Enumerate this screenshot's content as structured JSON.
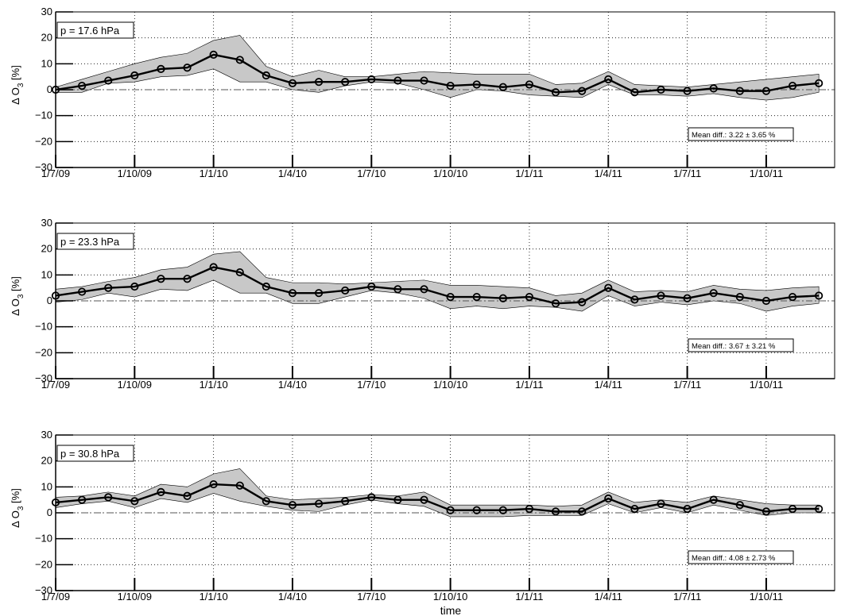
{
  "xlabel": "time",
  "chart_data": [
    {
      "type": "line",
      "label": "p = 17.6 hPa",
      "ylabel": "Δ O",
      "ylabel_sub": "3",
      "ylabel_unit": "[%]",
      "ylim": [
        -30,
        30
      ],
      "yticks": [
        30,
        20,
        10,
        0,
        -10,
        -20,
        -30
      ],
      "yticklabels": [
        "30",
        "20",
        "10",
        "0",
        "−10",
        "−20",
        "−30"
      ],
      "xlim": [
        0,
        29.6
      ],
      "xticks": [
        0,
        3,
        6,
        9,
        12,
        15,
        18,
        21,
        24,
        27
      ],
      "xticklabels": [
        "1/7/09",
        "1/10/09",
        "1/1/10",
        "1/4/10",
        "1/7/10",
        "1/10/10",
        "1/1/11",
        "1/4/11",
        "1/7/11",
        "1/10/11"
      ],
      "x": [
        0,
        1,
        2,
        3,
        4,
        5,
        6,
        7,
        8,
        9,
        10,
        11,
        12,
        13,
        14,
        15,
        16,
        17,
        18,
        19,
        20,
        21,
        22,
        23,
        24,
        25,
        26,
        27,
        28,
        29
      ],
      "values": [
        0,
        1.5,
        3.5,
        5.5,
        8,
        8.5,
        13.5,
        11.5,
        5.5,
        2.5,
        3,
        3,
        4,
        3.5,
        3.5,
        1.5,
        2,
        1,
        2,
        -1,
        -0.5,
        4,
        -1,
        0,
        -0.5,
        0.5,
        -0.5,
        -0.5,
        1.5,
        2.5
      ],
      "upper": [
        1,
        4,
        7,
        10,
        12.5,
        14,
        19,
        21,
        9,
        5,
        7.5,
        5,
        5,
        6,
        7,
        6.5,
        6,
        6,
        6,
        2,
        2.5,
        7,
        2,
        1.5,
        1,
        2,
        3,
        4,
        5,
        6
      ],
      "lower": [
        -1,
        -1,
        2.5,
        3,
        5,
        5.5,
        8,
        3,
        3,
        0,
        -1,
        1.5,
        3,
        2.5,
        0,
        -3,
        0,
        -0.5,
        -2,
        -2.5,
        -3,
        2,
        -2,
        -2,
        -2.5,
        -1.5,
        -3,
        -4,
        -3,
        -1
      ],
      "mean_diff_text": "Mean diff.: 3.22  ±  3.65 %",
      "reference_line": 0,
      "grid": true
    },
    {
      "type": "line",
      "label": "p = 23.3 hPa",
      "ylabel": "Δ O",
      "ylabel_sub": "3",
      "ylabel_unit": "[%]",
      "ylim": [
        -30,
        30
      ],
      "yticks": [
        30,
        20,
        10,
        0,
        -10,
        -20,
        -30
      ],
      "yticklabels": [
        "30",
        "20",
        "10",
        "0",
        "−10",
        "−20",
        "−30"
      ],
      "xlim": [
        0,
        29.6
      ],
      "xticks": [
        0,
        3,
        6,
        9,
        12,
        15,
        18,
        21,
        24,
        27
      ],
      "xticklabels": [
        "1/7/09",
        "1/10/09",
        "1/1/10",
        "1/4/10",
        "1/7/10",
        "1/10/10",
        "1/1/11",
        "1/4/11",
        "1/7/11",
        "1/10/11"
      ],
      "x": [
        0,
        1,
        2,
        3,
        4,
        5,
        6,
        7,
        8,
        9,
        10,
        11,
        12,
        13,
        14,
        15,
        16,
        17,
        18,
        19,
        20,
        21,
        22,
        23,
        24,
        25,
        26,
        27,
        28,
        29
      ],
      "values": [
        2,
        3.5,
        5,
        5.5,
        8.5,
        8.5,
        13,
        11,
        5.5,
        3,
        3,
        4,
        5.5,
        4.5,
        4.5,
        1.5,
        1.5,
        1,
        1.5,
        -1,
        -0.5,
        5,
        0.5,
        2,
        1,
        3,
        1.5,
        0,
        1.5,
        2
      ],
      "upper": [
        4.5,
        5.5,
        7.5,
        9,
        12,
        13,
        18,
        19,
        9,
        7,
        7,
        6.5,
        7,
        7.5,
        8,
        6,
        6,
        5.5,
        5,
        2,
        3,
        8,
        3.5,
        4,
        3.5,
        6,
        4.5,
        4,
        5,
        5.5
      ],
      "lower": [
        -0.5,
        0.5,
        3,
        1.5,
        4.5,
        4,
        8,
        3,
        3,
        -1,
        -1,
        1.5,
        4,
        3,
        1,
        -3,
        -2,
        -3,
        -2,
        -2.5,
        -4,
        2,
        -2,
        -0.5,
        -1.5,
        0,
        -1,
        -4,
        -2,
        -1
      ],
      "mean_diff_text": "Mean diff.: 3.67  ±  3.21 %",
      "reference_line": 0,
      "grid": true
    },
    {
      "type": "line",
      "label": "p = 30.8 hPa",
      "ylabel": "Δ O",
      "ylabel_sub": "3",
      "ylabel_unit": "[%]",
      "ylim": [
        -30,
        30
      ],
      "yticks": [
        30,
        20,
        10,
        0,
        -10,
        -20,
        -30
      ],
      "yticklabels": [
        "30",
        "20",
        "10",
        "0",
        "−10",
        "−20",
        "−30"
      ],
      "xlim": [
        0,
        29.6
      ],
      "xticks": [
        0,
        3,
        6,
        9,
        12,
        15,
        18,
        21,
        24,
        27
      ],
      "xticklabels": [
        "1/7/09",
        "1/10/09",
        "1/1/10",
        "1/4/10",
        "1/7/10",
        "1/10/10",
        "1/1/11",
        "1/4/11",
        "1/7/11",
        "1/10/11"
      ],
      "x": [
        0,
        1,
        2,
        3,
        4,
        5,
        6,
        7,
        8,
        9,
        10,
        11,
        12,
        13,
        14,
        15,
        16,
        17,
        18,
        19,
        20,
        21,
        22,
        23,
        24,
        25,
        26,
        27,
        28,
        29
      ],
      "values": [
        4,
        5,
        6,
        4.5,
        8,
        6.5,
        11,
        10.5,
        4.5,
        3,
        3.5,
        4.5,
        6,
        5,
        5,
        1,
        1,
        1,
        1.5,
        0.5,
        0.5,
        5.5,
        1.5,
        3.5,
        1.5,
        5,
        3,
        0.5,
        1.5,
        1.5
      ],
      "upper": [
        6,
        6.5,
        8,
        6.5,
        11,
        10,
        15,
        17,
        6.5,
        5,
        5.5,
        6,
        7,
        6.5,
        8,
        3,
        3,
        3,
        3,
        2.5,
        3,
        8,
        4,
        5,
        4,
        6.5,
        5,
        3.5,
        3,
        3
      ],
      "lower": [
        2,
        3.5,
        4.5,
        2,
        5.5,
        4,
        7.5,
        4.5,
        2.5,
        1,
        0.5,
        3,
        5,
        3.5,
        2.5,
        -1.5,
        -1.5,
        -1.5,
        -1,
        -1,
        -1,
        3.5,
        0,
        2,
        0,
        3,
        1,
        -1,
        0,
        0
      ],
      "mean_diff_text": "Mean diff.: 4.08  ±  2.73 %",
      "reference_line": 0,
      "grid": true
    }
  ]
}
